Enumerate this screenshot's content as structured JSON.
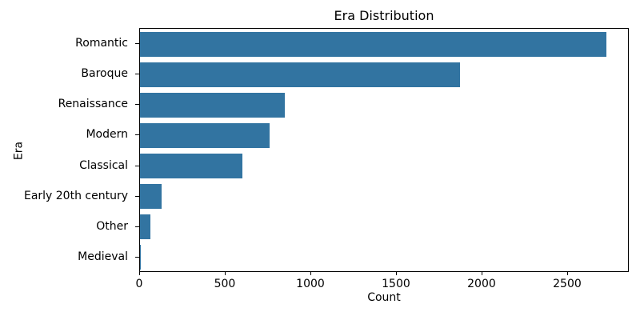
{
  "chart_data": {
    "type": "bar",
    "orientation": "horizontal",
    "title": "Era Distribution",
    "xlabel": "Count",
    "ylabel": "Era",
    "categories": [
      "Romantic",
      "Baroque",
      "Renaissance",
      "Modern",
      "Classical",
      "Early 20th century",
      "Other",
      "Medieval"
    ],
    "values": [
      2723,
      1871,
      845,
      757,
      597,
      126,
      63,
      2
    ],
    "xlim": [
      0,
      2860
    ],
    "xticks": [
      0,
      500,
      1000,
      1500,
      2000,
      2500
    ],
    "bar_color": "#3274a1",
    "axis_color": "#000000",
    "background": "#ffffff",
    "grid": false,
    "legend_position": "none"
  }
}
